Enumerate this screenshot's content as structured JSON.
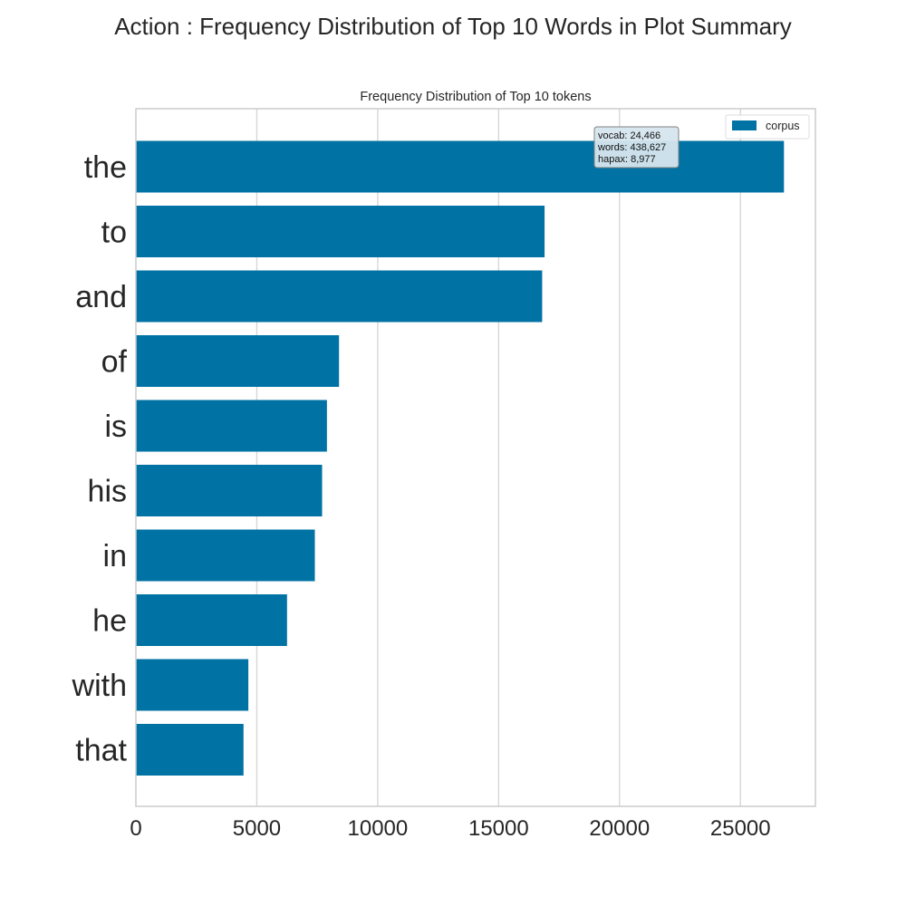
{
  "figure": {
    "suptitle": "Action : Frequency Distribution of Top 10 Words in Plot Summary"
  },
  "chart_data": {
    "type": "bar",
    "orientation": "horizontal",
    "title": "Frequency Distribution of Top 10 tokens",
    "xlabel": "",
    "ylabel": "",
    "categories": [
      "the",
      "to",
      "and",
      "of",
      "is",
      "his",
      "in",
      "he",
      "with",
      "that"
    ],
    "series": [
      {
        "name": "corpus",
        "values": [
          26800,
          16900,
          16800,
          8400,
          7900,
          7700,
          7400,
          6250,
          4650,
          4450
        ]
      }
    ],
    "xlim": [
      0,
      28100
    ],
    "xticks": [
      0,
      5000,
      10000,
      15000,
      20000,
      25000
    ],
    "xtick_labels": [
      "0",
      "5000",
      "10000",
      "15000",
      "20000",
      "25000"
    ],
    "grid": true,
    "legend": {
      "placement": "top-right",
      "entries": [
        "corpus"
      ]
    },
    "annotation": {
      "vocab": "vocab: 24,466",
      "words": "words: 438,627",
      "hapax": "hapax: 8,977"
    },
    "colors": {
      "bar": "#0072a3",
      "grid": "#d7d7d7",
      "frame": "#cccccc",
      "text": "#262626"
    }
  }
}
